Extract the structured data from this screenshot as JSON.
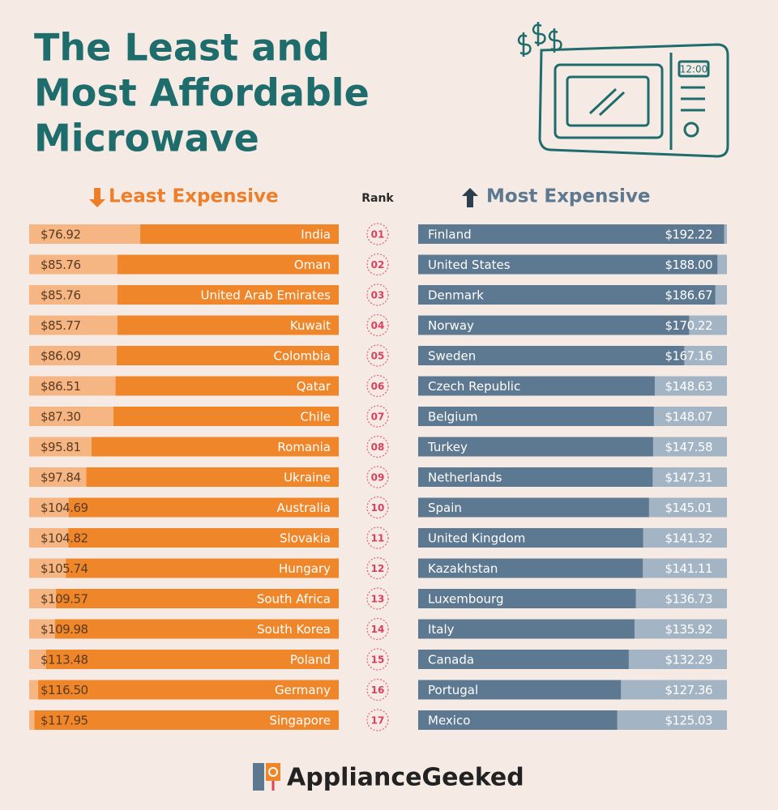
{
  "title_lines": [
    "The Least and",
    "Most Affordable",
    "Microwave"
  ],
  "illustration_clock": "12:00",
  "rank_header": "Rank",
  "ranks": [
    "01",
    "02",
    "03",
    "04",
    "05",
    "06",
    "07",
    "08",
    "09",
    "10",
    "11",
    "12",
    "13",
    "14",
    "15",
    "16",
    "17"
  ],
  "brand": "ApplianceGeeked",
  "chart_data": [
    {
      "type": "bar",
      "orientation": "horizontal",
      "direction": "leftward",
      "title": "Least Expensive",
      "categories": [
        "India",
        "Oman",
        "United Arab Emirates",
        "Kuwait",
        "Colombia",
        "Qatar",
        "Chile",
        "Romania",
        "Ukraine",
        "Australia",
        "Slovakia",
        "Hungary",
        "South Africa",
        "South Korea",
        "Poland",
        "Germany",
        "Singapore"
      ],
      "values": [
        76.92,
        85.76,
        85.76,
        85.77,
        86.09,
        86.51,
        87.3,
        95.81,
        97.84,
        104.69,
        104.82,
        105.74,
        109.57,
        109.98,
        113.48,
        116.5,
        117.95
      ],
      "value_labels": [
        "$76.92",
        "$85.76",
        "$85.76",
        "$85.77",
        "$86.09",
        "$86.51",
        "$87.30",
        "$95.81",
        "$97.84",
        "$104.69",
        "$104.82",
        "$105.74",
        "$109.57",
        "$109.98",
        "$113.48",
        "$116.50",
        "$117.95"
      ],
      "color": "#f0862a",
      "track_color": "#f5b684",
      "title_color": "#ee7f2a",
      "xlim": [
        0,
        120
      ]
    },
    {
      "type": "bar",
      "orientation": "horizontal",
      "direction": "rightward",
      "title": "Most Expensive",
      "categories": [
        "Finland",
        "United States",
        "Denmark",
        "Norway",
        "Sweden",
        "Czech Republic",
        "Belgium",
        "Turkey",
        "Netherlands",
        "Spain",
        "United Kingdom",
        "Kazakhstan",
        "Luxembourg",
        "Italy",
        "Canada",
        "Portugal",
        "Mexico"
      ],
      "values": [
        192.22,
        188.0,
        186.67,
        170.22,
        167.16,
        148.63,
        148.07,
        147.58,
        147.31,
        145.01,
        141.32,
        141.11,
        136.73,
        135.92,
        132.29,
        127.36,
        125.03
      ],
      "value_labels": [
        "$192.22",
        "$188.00",
        "$186.67",
        "$170.22",
        "$167.16",
        "$148.63",
        "$148.07",
        "$147.58",
        "$147.31",
        "$145.01",
        "$141.32",
        "$141.11",
        "$136.73",
        "$135.92",
        "$132.29",
        "$127.36",
        "$125.03"
      ],
      "color": "#5d7891",
      "track_color": "#a3b4c4",
      "title_color": "#5d7891",
      "xlim": [
        0,
        194
      ]
    }
  ]
}
